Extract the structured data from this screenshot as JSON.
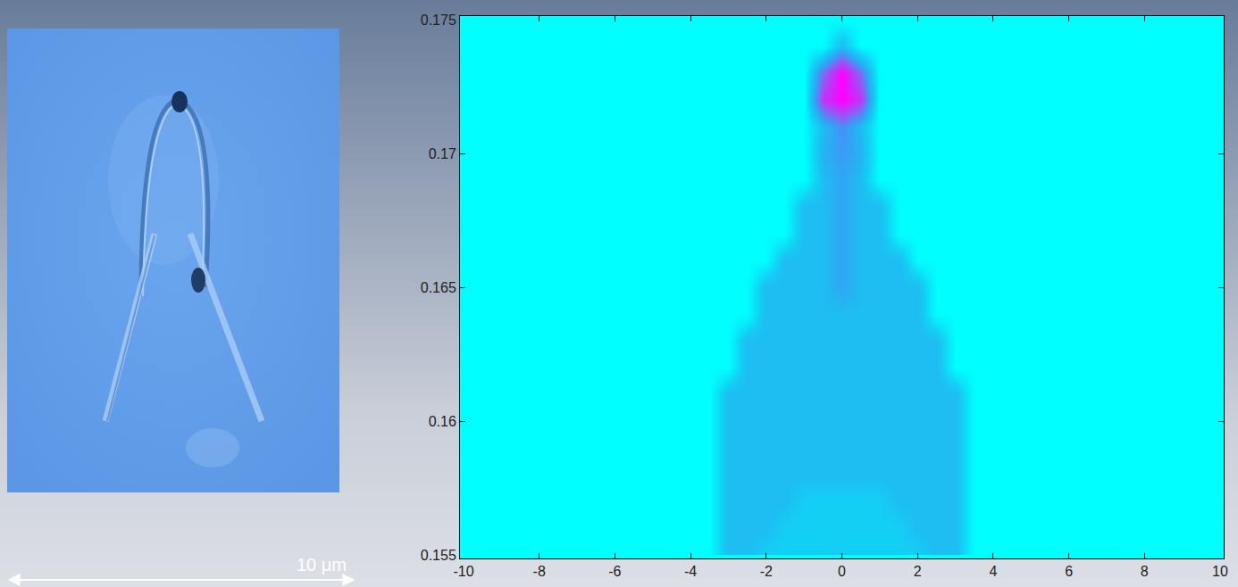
{
  "chart_data": {
    "type": "heatmap",
    "x": [
      -4,
      -3.5,
      -3,
      -2.5,
      -2,
      -1.5,
      -1,
      -0.5,
      0,
      0.5,
      1,
      1.5,
      2,
      2.5,
      3,
      3.5,
      4
    ],
    "y": [
      0.155,
      0.156,
      0.157,
      0.158,
      0.159,
      0.16,
      0.161,
      0.162,
      0.163,
      0.164,
      0.165,
      0.166,
      0.167,
      0.168,
      0.169,
      0.17,
      0.171,
      0.172,
      0.173,
      0.174,
      0.175
    ],
    "z": [
      [
        0,
        0,
        0.3,
        0.3,
        0.2,
        0.2,
        0.2,
        0.2,
        0.2,
        0.2,
        0.2,
        0.2,
        0.2,
        0.3,
        0.3,
        0,
        0
      ],
      [
        0,
        0,
        0.3,
        0.3,
        0.3,
        0.2,
        0.2,
        0.2,
        0.2,
        0.2,
        0.2,
        0.2,
        0.3,
        0.3,
        0.3,
        0,
        0
      ],
      [
        0,
        0,
        0.3,
        0.3,
        0.3,
        0.3,
        0.2,
        0.2,
        0.2,
        0.2,
        0.2,
        0.3,
        0.3,
        0.3,
        0.3,
        0,
        0
      ],
      [
        0,
        0,
        0.3,
        0.3,
        0.3,
        0.3,
        0.3,
        0.3,
        0.3,
        0.3,
        0.3,
        0.3,
        0.3,
        0.3,
        0.3,
        0,
        0
      ],
      [
        0,
        0,
        0.3,
        0.3,
        0.3,
        0.3,
        0.3,
        0.3,
        0.3,
        0.3,
        0.3,
        0.3,
        0.3,
        0.3,
        0.3,
        0,
        0
      ],
      [
        0,
        0,
        0.3,
        0.3,
        0.3,
        0.3,
        0.3,
        0.3,
        0.3,
        0.3,
        0.3,
        0.3,
        0.3,
        0.3,
        0.3,
        0,
        0
      ],
      [
        0,
        0,
        0.3,
        0.3,
        0.3,
        0.3,
        0.3,
        0.3,
        0.3,
        0.3,
        0.3,
        0.3,
        0.3,
        0.3,
        0.3,
        0,
        0
      ],
      [
        0,
        0,
        0,
        0.3,
        0.3,
        0.3,
        0.3,
        0.3,
        0.3,
        0.3,
        0.3,
        0.3,
        0.3,
        0.3,
        0,
        0,
        0
      ],
      [
        0,
        0,
        0,
        0.3,
        0.3,
        0.3,
        0.3,
        0.3,
        0.3,
        0.3,
        0.3,
        0.3,
        0.3,
        0.3,
        0,
        0,
        0
      ],
      [
        0,
        0,
        0,
        0,
        0.3,
        0.3,
        0.3,
        0.3,
        0.3,
        0.3,
        0.3,
        0.3,
        0.3,
        0,
        0,
        0,
        0
      ],
      [
        0,
        0,
        0,
        0,
        0.3,
        0.3,
        0.3,
        0.3,
        0.4,
        0.3,
        0.3,
        0.3,
        0.3,
        0,
        0,
        0,
        0
      ],
      [
        0,
        0,
        0,
        0,
        0,
        0.3,
        0.3,
        0.3,
        0.4,
        0.3,
        0.3,
        0.3,
        0,
        0,
        0,
        0,
        0
      ],
      [
        0,
        0,
        0,
        0,
        0,
        0,
        0.3,
        0.3,
        0.4,
        0.3,
        0.3,
        0,
        0,
        0,
        0,
        0,
        0
      ],
      [
        0,
        0,
        0,
        0,
        0,
        0,
        0.3,
        0.3,
        0.4,
        0.3,
        0.3,
        0,
        0,
        0,
        0,
        0,
        0
      ],
      [
        0,
        0,
        0,
        0,
        0,
        0,
        0,
        0.3,
        0.4,
        0.3,
        0,
        0,
        0,
        0,
        0,
        0,
        0
      ],
      [
        0,
        0,
        0,
        0,
        0,
        0,
        0,
        0.35,
        0.45,
        0.35,
        0,
        0,
        0,
        0,
        0,
        0,
        0
      ],
      [
        0,
        0,
        0,
        0,
        0,
        0,
        0,
        0.3,
        0.5,
        0.3,
        0,
        0,
        0,
        0,
        0,
        0,
        0
      ],
      [
        0,
        0,
        0,
        0,
        0,
        0,
        0,
        0.8,
        1,
        0.8,
        0,
        0,
        0,
        0,
        0,
        0,
        0
      ],
      [
        0,
        0,
        0,
        0,
        0,
        0,
        0,
        0.6,
        1,
        0.6,
        0,
        0,
        0,
        0,
        0,
        0,
        0
      ],
      [
        0,
        0,
        0,
        0,
        0,
        0,
        0,
        0,
        0.3,
        0,
        0,
        0,
        0,
        0,
        0,
        0,
        0
      ],
      [
        0,
        0,
        0,
        0,
        0,
        0,
        0,
        0,
        0,
        0,
        0,
        0,
        0,
        0,
        0,
        0,
        0
      ]
    ],
    "xlim": [
      -10,
      10
    ],
    "xticks": [
      -10,
      -8,
      -6,
      -4,
      -2,
      0,
      2,
      4,
      6,
      8,
      10
    ],
    "ylim": [
      0.155,
      0.175
    ],
    "yticks": [
      0.155,
      0.16,
      0.165,
      0.17,
      0.175
    ]
  },
  "image": {
    "scale_bar": "10 μm"
  }
}
